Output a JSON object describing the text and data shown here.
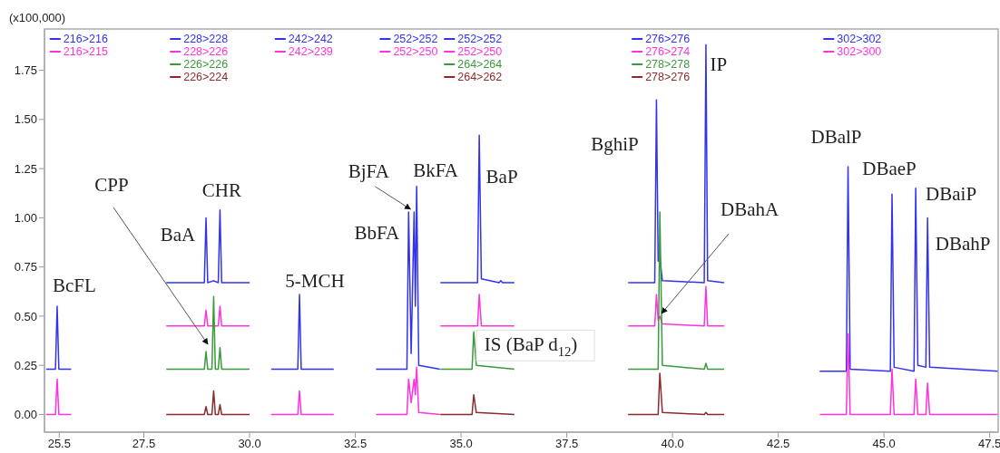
{
  "chart_data": {
    "type": "line",
    "ylabel": "(x100,000)",
    "legend": "top",
    "xlim": [
      25.15,
      47.7
    ],
    "ylim": [
      -0.09,
      1.96
    ],
    "xticks": [
      {
        "value": 25.5,
        "label": "25.5"
      },
      {
        "value": 27.5,
        "label": "27.5"
      },
      {
        "value": 30,
        "label": "30.0"
      },
      {
        "value": 32.5,
        "label": "32.5"
      },
      {
        "value": 35,
        "label": "35.0"
      },
      {
        "value": 37.5,
        "label": "37.5"
      },
      {
        "value": 40,
        "label": "40.0"
      },
      {
        "value": 42.5,
        "label": "42.5"
      },
      {
        "value": 45,
        "label": "45.0"
      },
      {
        "value": 47.5,
        "label": "47.5"
      }
    ],
    "yticks": [
      {
        "value": 0,
        "label": "0.00"
      },
      {
        "value": 0.25,
        "label": "0.25"
      },
      {
        "value": 0.5,
        "label": "0.50"
      },
      {
        "value": 0.75,
        "label": "0.75"
      },
      {
        "value": 1,
        "label": "1.00"
      },
      {
        "value": 1.25,
        "label": "1.25"
      },
      {
        "value": 1.5,
        "label": "1.50"
      },
      {
        "value": 1.75,
        "label": "1.75"
      }
    ],
    "series": [
      {
        "name": "216>216",
        "color": "#3333ee",
        "x": [
          25.19,
          25.41,
          25.45,
          25.49,
          25.78
        ],
        "values": [
          0.23,
          0.23,
          0.55,
          0.23,
          0.23
        ]
      },
      {
        "name": "216>215",
        "color": "#ff33dd",
        "x": [
          25.19,
          25.41,
          25.45,
          25.49,
          25.78
        ],
        "values": [
          0,
          0,
          0.18,
          0,
          0
        ]
      },
      {
        "name": "228>228",
        "color": "#3333ee",
        "x": [
          28.03,
          28.93,
          28.97,
          29.01,
          29.15,
          29.26,
          29.3,
          29.34,
          30.0
        ],
        "values": [
          0.67,
          0.67,
          1.0,
          0.67,
          0.68,
          0.67,
          1.04,
          0.67,
          0.67
        ]
      },
      {
        "name": "228>226",
        "color": "#ff33dd",
        "x": [
          28.03,
          28.93,
          28.97,
          29.01,
          29.15,
          29.26,
          29.3,
          29.34,
          30.0
        ],
        "values": [
          0.45,
          0.45,
          0.53,
          0.45,
          0.45,
          0.45,
          0.55,
          0.45,
          0.45
        ]
      },
      {
        "name": "226>226",
        "color": "#3a9a3a",
        "x": [
          28.03,
          28.93,
          28.97,
          29.01,
          29.11,
          29.15,
          29.19,
          29.26,
          29.3,
          29.34,
          30.0
        ],
        "values": [
          0.23,
          0.23,
          0.32,
          0.23,
          0.23,
          0.6,
          0.23,
          0.23,
          0.34,
          0.23,
          0.23
        ]
      },
      {
        "name": "226>224",
        "color": "#8b2a2a",
        "x": [
          28.03,
          28.93,
          28.97,
          29.01,
          29.11,
          29.15,
          29.19,
          29.26,
          29.3,
          29.34,
          30.0
        ],
        "values": [
          0,
          0,
          0.04,
          0,
          0,
          0.12,
          0,
          0,
          0.05,
          0,
          0
        ]
      },
      {
        "name": "242>242",
        "color": "#3333ee",
        "x": [
          30.51,
          31.14,
          31.18,
          31.22,
          31.99
        ],
        "values": [
          0.23,
          0.23,
          0.61,
          0.23,
          0.23
        ]
      },
      {
        "name": "242>239",
        "color": "#ff33dd",
        "x": [
          30.51,
          31.14,
          31.18,
          31.22,
          31.99
        ],
        "values": [
          0,
          0,
          0.12,
          0,
          0
        ]
      },
      {
        "name": "252>252",
        "color": "#3333ee",
        "x": [
          32.99,
          33.72,
          33.76,
          33.82,
          33.89,
          33.92,
          33.95,
          34.0,
          34.5
        ],
        "values": [
          0.23,
          0.23,
          1.03,
          0.31,
          1.03,
          0.55,
          1.16,
          0.25,
          0.23
        ]
      },
      {
        "name": "252>250",
        "color": "#ff33dd",
        "x": [
          32.99,
          33.72,
          33.76,
          33.82,
          33.89,
          33.92,
          33.95,
          34.0,
          34.5
        ],
        "values": [
          0,
          0,
          0.18,
          0.06,
          0.18,
          0.1,
          0.24,
          0.01,
          0
        ]
      },
      {
        "name": "252>252",
        "color": "#3333ee",
        "x": [
          34.51,
          35.39,
          35.43,
          35.48,
          35.9,
          35.94,
          35.98,
          36.26
        ],
        "values": [
          0.67,
          0.67,
          1.42,
          0.69,
          0.67,
          0.68,
          0.67,
          0.67
        ]
      },
      {
        "name": "252>250",
        "color": "#ff33dd",
        "x": [
          34.51,
          35.39,
          35.43,
          35.48,
          36.26
        ],
        "values": [
          0.45,
          0.45,
          0.61,
          0.45,
          0.45
        ]
      },
      {
        "name": "264>264",
        "color": "#3a9a3a",
        "x": [
          34.51,
          35.26,
          35.3,
          35.36,
          36.26
        ],
        "values": [
          0.23,
          0.23,
          0.42,
          0.25,
          0.23
        ]
      },
      {
        "name": "264>262",
        "color": "#8b2a2a",
        "x": [
          34.51,
          35.26,
          35.3,
          35.36,
          36.26
        ],
        "values": [
          0,
          0,
          0.1,
          0.01,
          0
        ]
      },
      {
        "name": "276>276",
        "color": "#3333ee",
        "x": [
          38.95,
          39.58,
          39.62,
          39.66,
          39.7,
          39.76,
          40.75,
          40.79,
          40.83,
          41.22
        ],
        "values": [
          0.67,
          0.67,
          1.6,
          0.78,
          0.8,
          0.68,
          0.67,
          1.88,
          0.68,
          0.67
        ]
      },
      {
        "name": "276>274",
        "color": "#ff33dd",
        "x": [
          38.95,
          39.58,
          39.62,
          39.66,
          39.7,
          39.76,
          40.75,
          40.79,
          40.83,
          41.22
        ],
        "values": [
          0.45,
          0.45,
          0.61,
          0.48,
          0.5,
          0.46,
          0.45,
          0.65,
          0.45,
          0.45
        ]
      },
      {
        "name": "278>278",
        "color": "#3a9a3a",
        "x": [
          38.95,
          39.66,
          39.7,
          39.76,
          40.75,
          40.79,
          40.83,
          41.22
        ],
        "values": [
          0.23,
          0.23,
          1.03,
          0.25,
          0.23,
          0.26,
          0.23,
          0.23
        ]
      },
      {
        "name": "278>276",
        "color": "#8b2a2a",
        "x": [
          38.95,
          39.66,
          39.7,
          39.76,
          40.75,
          40.79,
          40.83,
          41.22
        ],
        "values": [
          0,
          0,
          0.21,
          0.01,
          0,
          0.01,
          0,
          0
        ]
      },
      {
        "name": "302>302",
        "color": "#3333ee",
        "x": [
          43.48,
          44.11,
          44.15,
          44.2,
          45.15,
          45.19,
          45.24,
          45.71,
          45.75,
          45.8,
          45.99,
          46.03,
          46.08,
          47.7
        ],
        "values": [
          0.22,
          0.22,
          1.26,
          0.23,
          0.22,
          1.12,
          0.24,
          0.22,
          1.15,
          0.25,
          0.24,
          1.0,
          0.24,
          0.22
        ]
      },
      {
        "name": "302>300",
        "color": "#ff33dd",
        "x": [
          43.48,
          44.11,
          44.15,
          44.2,
          45.15,
          45.19,
          45.24,
          45.71,
          45.75,
          45.8,
          45.99,
          46.03,
          46.08,
          47.7
        ],
        "values": [
          0,
          0,
          0.41,
          0,
          0,
          0.23,
          0,
          0,
          0.18,
          0,
          0,
          0.16,
          0,
          0
        ]
      }
    ],
    "annotations": [
      {
        "text": "BcFL",
        "x": 25.45,
        "y": 0.55
      },
      {
        "text": "CPP",
        "x": 28.97,
        "y": 0.32
      },
      {
        "text": "BaA",
        "x": 28.97,
        "y": 1.0
      },
      {
        "text": "CHR",
        "x": 29.3,
        "y": 1.04
      },
      {
        "text": "5-MCH",
        "x": 31.18,
        "y": 0.61
      },
      {
        "text": "BbFA",
        "x": 33.76,
        "y": 1.03
      },
      {
        "text": "BjFA",
        "x": 33.89,
        "y": 1.03
      },
      {
        "text": "BkFA",
        "x": 33.95,
        "y": 1.16
      },
      {
        "text": "BaP",
        "x": 35.43,
        "y": 1.42
      },
      {
        "text": "IS (BaP d$_{12}$)",
        "x": 35.3,
        "y": 0.42
      },
      {
        "text": "BghiP",
        "x": 39.62,
        "y": 1.6
      },
      {
        "text": "IP",
        "x": 40.79,
        "y": 1.88
      },
      {
        "text": "DBahA",
        "x": 39.7,
        "y": 0.5
      },
      {
        "text": "DBalP",
        "x": 44.15,
        "y": 1.26
      },
      {
        "text": "DBaeP",
        "x": 45.19,
        "y": 1.12
      },
      {
        "text": "DBaiP",
        "x": 45.75,
        "y": 1.15
      },
      {
        "text": "DBahP",
        "x": 46.03,
        "y": 1.0
      }
    ]
  }
}
